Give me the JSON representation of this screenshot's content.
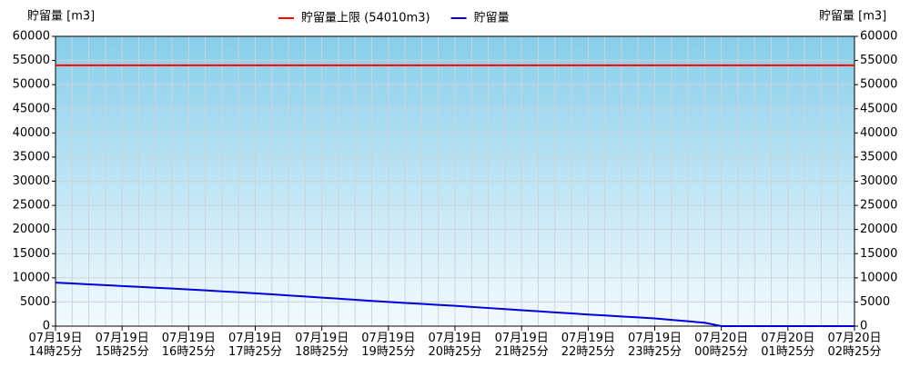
{
  "chart_data": {
    "type": "line",
    "ylabel": "貯留量 [m3]",
    "y2label": "貯留量 [m3]",
    "ylim": [
      0,
      60000
    ],
    "yticks": [
      0,
      5000,
      10000,
      15000,
      20000,
      25000,
      30000,
      35000,
      40000,
      45000,
      50000,
      55000,
      60000
    ],
    "y2lim": [
      0,
      60000
    ],
    "y2ticks": [
      0,
      5000,
      10000,
      15000,
      20000,
      25000,
      30000,
      35000,
      40000,
      45000,
      50000,
      55000,
      60000
    ],
    "grid": true,
    "categories": [
      "07月19日 14時25分",
      null,
      null,
      null,
      "07月19日 15時25分",
      null,
      null,
      null,
      "07月19日 16時25分",
      null,
      null,
      null,
      "07月19日 17時25分",
      null,
      null,
      null,
      "07月19日 18時25分",
      null,
      null,
      null,
      "07月19日 19時25分",
      null,
      null,
      null,
      "07月19日 20時25分",
      null,
      null,
      null,
      "07月19日 21時25分",
      null,
      null,
      null,
      "07月19日 22時25分",
      null,
      null,
      null,
      "07月19日 23時25分",
      null,
      null,
      null,
      "07月20日 00時25分",
      null,
      null,
      null,
      "07月20日 01時25分",
      null,
      null,
      null,
      "07月20日 02時25分"
    ],
    "reference_lines": [
      {
        "name": "貯留量上限 (54010m3)",
        "value": 54010,
        "color": "#ff0000"
      }
    ],
    "series": [
      {
        "name": "貯留量",
        "color": "#0000dd",
        "values": [
          9000,
          8830,
          8650,
          8480,
          8300,
          8130,
          7950,
          7780,
          7600,
          7400,
          7200,
          7000,
          6800,
          6580,
          6350,
          6130,
          5900,
          5680,
          5450,
          5230,
          5000,
          4800,
          4600,
          4400,
          4200,
          3980,
          3750,
          3530,
          3300,
          3080,
          2850,
          2630,
          2400,
          2200,
          2000,
          1800,
          1600,
          1300,
          1000,
          700,
          0,
          0,
          0,
          0,
          0,
          0,
          0,
          0,
          0
        ]
      }
    ]
  }
}
